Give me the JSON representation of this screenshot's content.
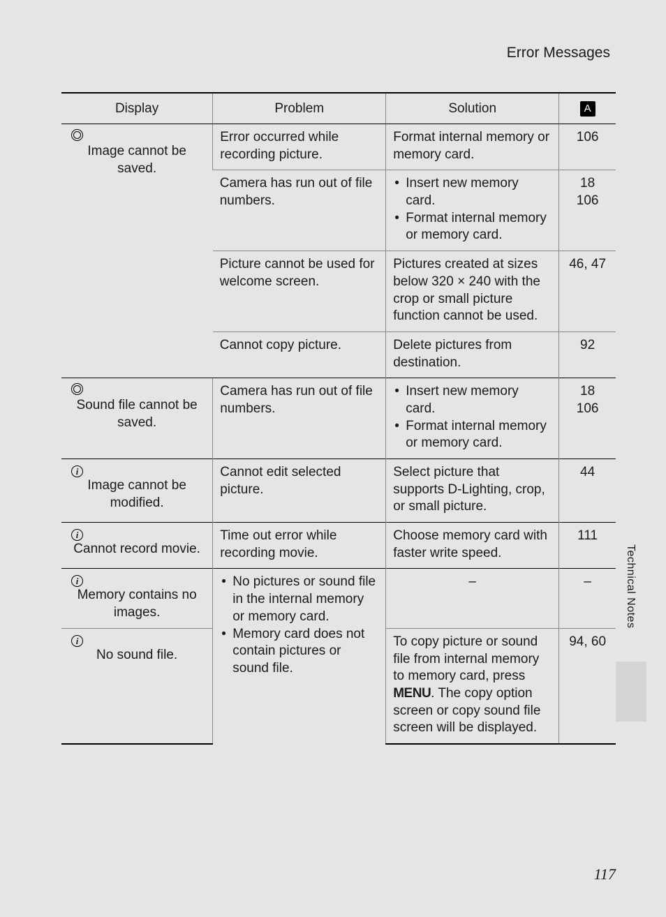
{
  "section_title": "Error Messages",
  "side_label": "Technical Notes",
  "page_number": "117",
  "headers": {
    "display": "Display",
    "problem": "Problem",
    "solution": "Solution",
    "page_icon": "A"
  },
  "rows": [
    {
      "display_icon": "circle",
      "display_text": "Image cannot be saved.",
      "problem": "Error occurred while recording picture.",
      "solution": "Format internal memory or memory card.",
      "page": "106"
    },
    {
      "problem": "Camera has run out of file numbers.",
      "solution_list": [
        "Insert new memory card.",
        "Format internal memory or memory card."
      ],
      "page": "18\n106"
    },
    {
      "problem": "Picture cannot be used for welcome screen.",
      "solution": "Pictures created at sizes below 320 × 240 with the crop or small picture function cannot be used.",
      "page": "46, 47"
    },
    {
      "problem": "Cannot copy picture.",
      "solution": "Delete pictures from destination.",
      "page": "92"
    },
    {
      "display_icon": "circle",
      "display_text": "Sound file cannot be saved.",
      "problem": "Camera has run out of file numbers.",
      "solution_list": [
        "Insert new memory card.",
        "Format internal memory or memory card."
      ],
      "page": "18\n106"
    },
    {
      "display_icon": "info",
      "display_text": "Image cannot be modified.",
      "problem": "Cannot edit selected picture.",
      "solution": "Select picture that supports D-Lighting, crop, or small picture.",
      "page": "44"
    },
    {
      "display_icon": "info",
      "display_text": "Cannot record movie.",
      "problem": "Time out error while recording movie.",
      "solution": "Choose memory card with faster write speed.",
      "page": "111"
    },
    {
      "display_icon": "info",
      "display_text": "Memory contains no images.",
      "problem_list": [
        "No pictures or sound file in the internal memory or memory card."
      ],
      "solution": "–",
      "page": "–"
    },
    {
      "display_icon": "info",
      "display_text": "No sound file.",
      "problem_list": [
        "Memory card does not contain pictures or sound file."
      ],
      "solution_menu": {
        "pre": "To copy picture or sound file from internal memory to memory card, press ",
        "menu": "MENU",
        "post": ". The copy option screen or copy sound file screen will be displayed."
      },
      "page": "94, 60"
    }
  ]
}
